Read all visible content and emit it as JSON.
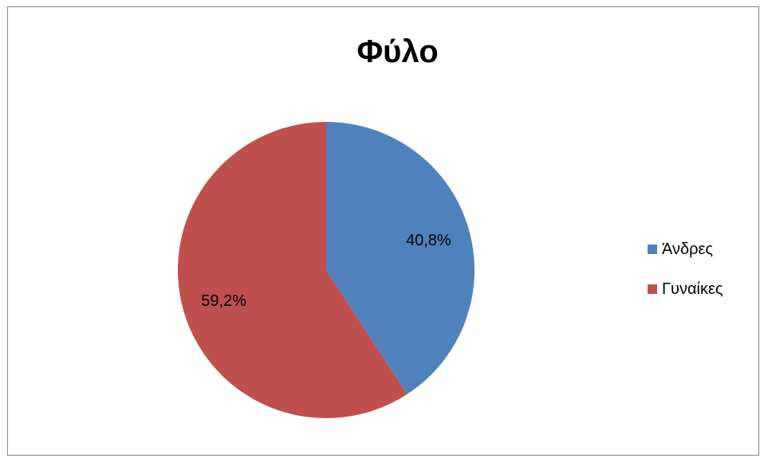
{
  "chart_data": {
    "type": "pie",
    "title": "Φύλο",
    "categories": [
      "Άνδρες",
      "Γυναίκες"
    ],
    "values": [
      40.8,
      59.2
    ],
    "data_labels": [
      "40,8%",
      "59,2%"
    ],
    "colors": [
      "#4f81bd",
      "#c0504d"
    ],
    "legend_position": "right"
  }
}
